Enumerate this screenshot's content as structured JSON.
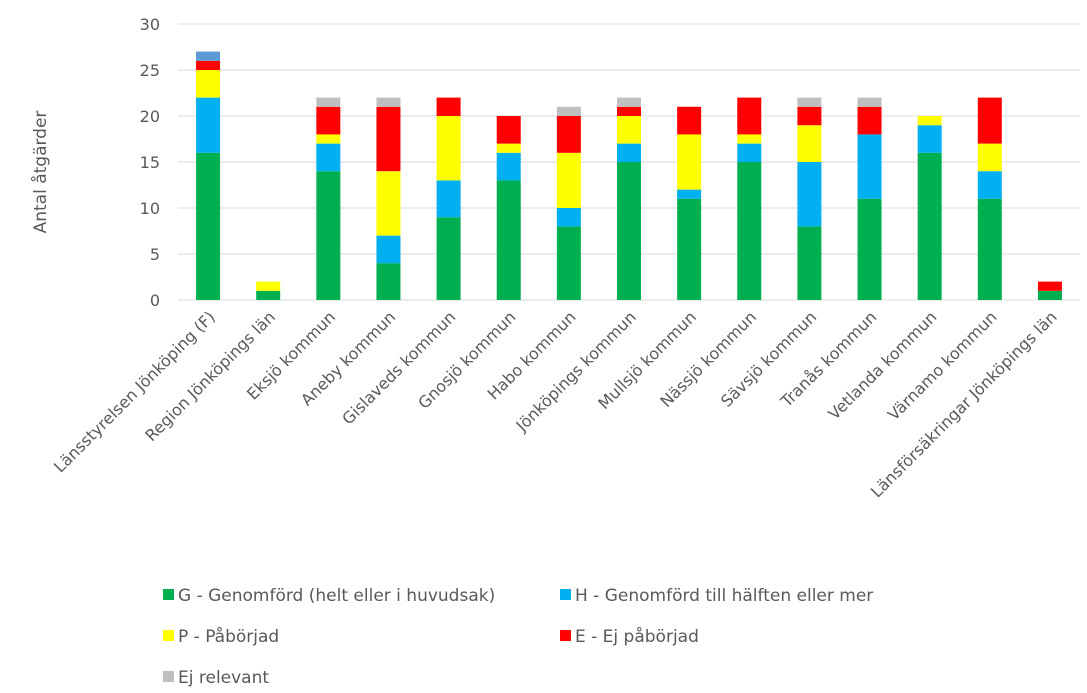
{
  "chart_data": {
    "type": "bar",
    "stacked": true,
    "title": "",
    "xlabel": "",
    "ylabel": "Antal åtgärder",
    "ylim": [
      0,
      30
    ],
    "yticks": [
      0,
      5,
      10,
      15,
      20,
      25,
      30
    ],
    "grid": true,
    "legend_position": "bottom",
    "categories": [
      "Länsstyrelsen Jönköping (F)",
      "Region Jönköpings län",
      "Eksjö kommun",
      "Aneby kommun",
      "Gislaveds kommun",
      "Gnosjö kommun",
      "Habo kommun",
      "Jönköpings kommun",
      "Mullsjö kommun",
      "Nässjö kommun",
      "Sävsjö kommun",
      "Tranås kommun",
      "Vetlanda kommun",
      "Värnamo kommun",
      "Länsförsäkringar Jönköpings län"
    ],
    "series": [
      {
        "name": "G - Genomförd (helt eller i huvudsak)",
        "color": "#00B050",
        "values": [
          16,
          1,
          14,
          4,
          9,
          13,
          8,
          15,
          11,
          15,
          8,
          11,
          16,
          11,
          1
        ]
      },
      {
        "name": "H - Genomförd till hälften eller mer",
        "color": "#00B0F0",
        "values": [
          6,
          0,
          3,
          3,
          4,
          3,
          2,
          2,
          1,
          2,
          7,
          7,
          3,
          3,
          0
        ]
      },
      {
        "name": "P - Påbörjad",
        "color": "#FFFF00",
        "values": [
          3,
          1,
          1,
          7,
          7,
          1,
          6,
          3,
          6,
          1,
          4,
          0,
          1,
          3,
          0
        ]
      },
      {
        "name": "E - Ej påbörjad",
        "color": "#FF0000",
        "values": [
          1,
          0,
          3,
          7,
          2,
          3,
          4,
          1,
          3,
          4,
          2,
          3,
          0,
          5,
          1
        ]
      },
      {
        "name": "Ej relevant",
        "color": "#BFBFBF",
        "values": [
          0,
          0,
          1,
          1,
          0,
          0,
          1,
          1,
          0,
          0,
          1,
          1,
          0,
          0,
          0
        ]
      },
      {
        "name": "",
        "color": "#5B9BD5",
        "values": [
          1,
          0,
          0,
          0,
          0,
          0,
          0,
          0,
          0,
          0,
          0,
          0,
          0,
          0,
          0
        ]
      }
    ]
  }
}
